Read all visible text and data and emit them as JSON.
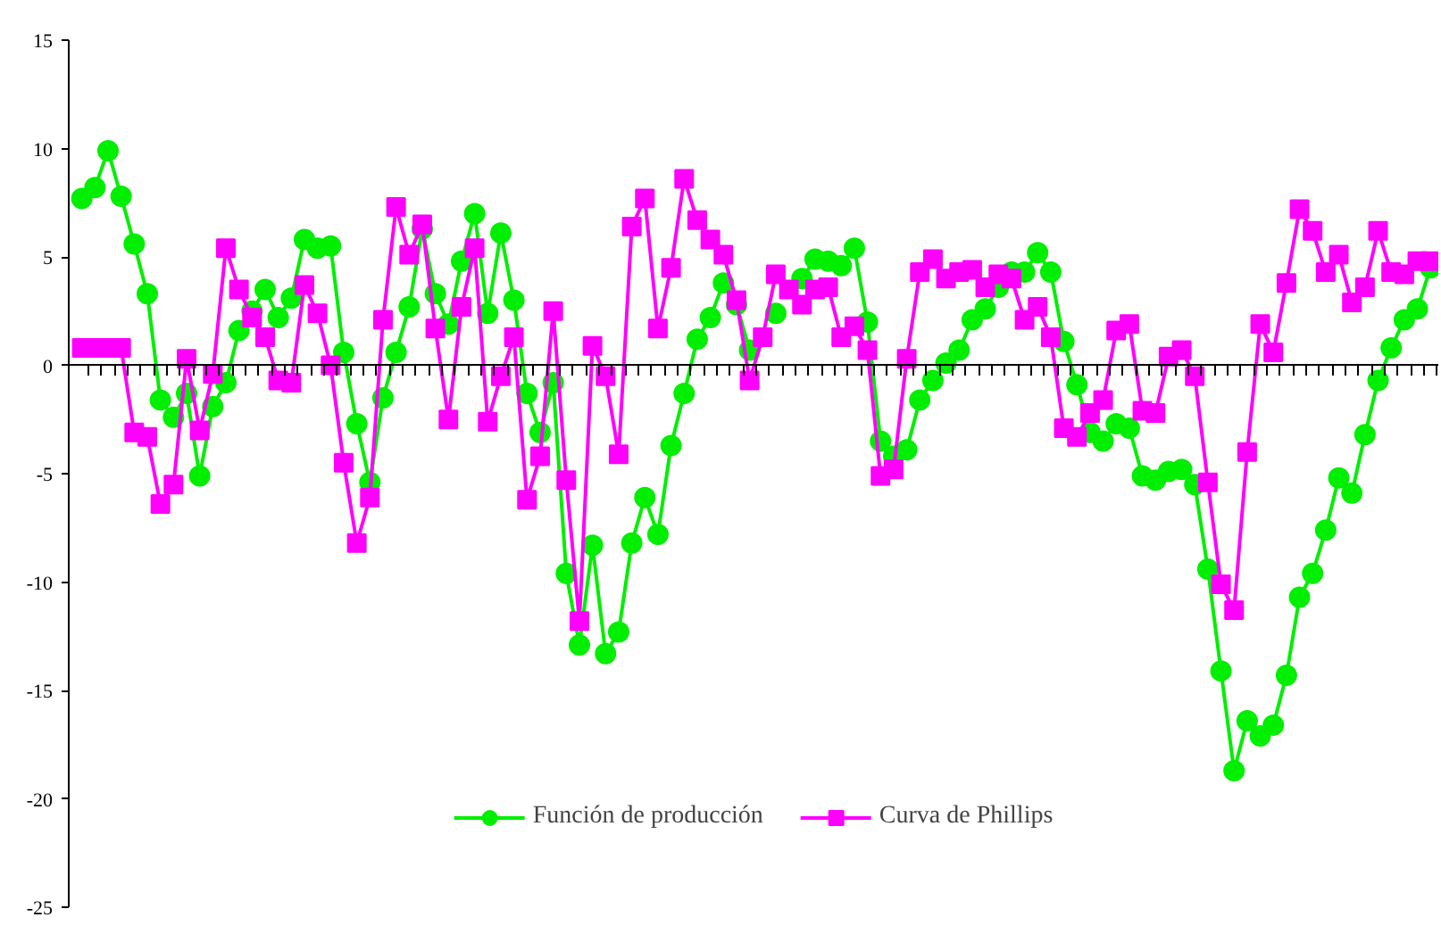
{
  "chart_data": {
    "type": "line",
    "categories": [
      null,
      null,
      null,
      null,
      null,
      null,
      null,
      null,
      null,
      null,
      null,
      null,
      null,
      null,
      null,
      null,
      null,
      null,
      null,
      null,
      null,
      null,
      null,
      null,
      null,
      null,
      null,
      null,
      null,
      null,
      null,
      null,
      null,
      null,
      null,
      null,
      null,
      null,
      null,
      null,
      null,
      null,
      null,
      null,
      null,
      null,
      null,
      null,
      null,
      null,
      null,
      null,
      null,
      null,
      null,
      null,
      null,
      null,
      null,
      null,
      null,
      null,
      null,
      null,
      null,
      null,
      null,
      null,
      null,
      null,
      null,
      null,
      null,
      null,
      null,
      null,
      null,
      null,
      null,
      null,
      null,
      null,
      null,
      null,
      null,
      null,
      null,
      null,
      null,
      null,
      null,
      null,
      null,
      null,
      null,
      null,
      null,
      null,
      null,
      null,
      null,
      null,
      null,
      null
    ],
    "series": [
      {
        "name": "Función de producción",
        "color": "#00ee00",
        "marker": "circle",
        "values": [
          7.7,
          8.2,
          9.9,
          7.8,
          5.6,
          3.3,
          -1.6,
          -2.4,
          -1.3,
          -5.1,
          -1.9,
          -0.8,
          1.6,
          2.5,
          3.5,
          2.2,
          3.1,
          5.8,
          5.4,
          5.5,
          0.6,
          -2.7,
          -5.4,
          -1.5,
          0.6,
          2.7,
          6.3,
          3.3,
          1.9,
          4.8,
          7.0,
          2.4,
          6.1,
          3.0,
          -1.3,
          -3.1,
          -0.8,
          -9.6,
          -12.9,
          -8.3,
          -13.3,
          -12.3,
          -8.2,
          -6.1,
          -7.8,
          -3.7,
          -1.3,
          1.2,
          2.2,
          3.8,
          2.8,
          0.7,
          null,
          2.4,
          null,
          4.0,
          4.9,
          4.8,
          4.6,
          5.4,
          2.0,
          -3.5,
          -4.2,
          -3.9,
          -1.6,
          -0.7,
          0.1,
          0.7,
          2.1,
          2.6,
          3.6,
          4.3,
          4.3,
          5.2,
          4.3,
          1.1,
          -0.9,
          -3.1,
          -3.5,
          -2.7,
          -2.9,
          -5.1,
          -5.3,
          -4.9,
          -4.8,
          -5.5,
          -9.4,
          -14.1,
          -18.7,
          -16.4,
          -17.1,
          -16.6,
          -14.3,
          -10.7,
          -9.6,
          -7.6,
          -5.2,
          -5.9,
          -3.2,
          -0.7,
          0.8,
          2.1,
          2.6,
          4.5
        ]
      },
      {
        "name": "Curva de Phillips",
        "color": "#ff00ff",
        "marker": "square",
        "values": [
          0.8,
          0.8,
          0.8,
          0.8,
          -3.1,
          -3.3,
          -6.4,
          -5.5,
          0.3,
          -3.0,
          -0.4,
          5.4,
          3.5,
          2.2,
          1.3,
          -0.7,
          -0.8,
          3.7,
          2.4,
          0.0,
          -4.5,
          -8.2,
          -6.1,
          2.1,
          7.3,
          5.1,
          6.5,
          1.7,
          -2.5,
          2.7,
          5.4,
          -2.6,
          -0.5,
          1.3,
          -6.2,
          -4.2,
          2.5,
          -5.3,
          -11.8,
          0.9,
          -0.5,
          -4.1,
          6.4,
          7.7,
          1.7,
          4.5,
          8.6,
          6.7,
          5.8,
          5.1,
          3.0,
          -0.7,
          1.3,
          4.2,
          3.5,
          2.8,
          3.5,
          3.6,
          1.3,
          1.8,
          0.7,
          -5.1,
          -4.8,
          0.3,
          4.3,
          4.9,
          4.0,
          4.3,
          4.4,
          3.6,
          4.2,
          4.0,
          2.1,
          2.7,
          1.3,
          -2.9,
          -3.3,
          -2.2,
          -1.6,
          1.6,
          1.9,
          -2.1,
          -2.2,
          0.4,
          0.7,
          -0.5,
          -5.4,
          -10.1,
          -11.3,
          -4.0,
          1.9,
          0.6,
          3.8,
          7.2,
          6.2,
          4.3,
          5.1,
          2.9,
          3.6,
          6.2,
          4.3,
          4.2,
          4.8,
          4.8
        ]
      }
    ],
    "ylim": [
      -25,
      15
    ],
    "yticks": [
      -25,
      -20,
      -15,
      -10,
      -5,
      0,
      5,
      10,
      15
    ],
    "legend": "bottom",
    "tick_labels": "y",
    "line_style": "solid"
  }
}
